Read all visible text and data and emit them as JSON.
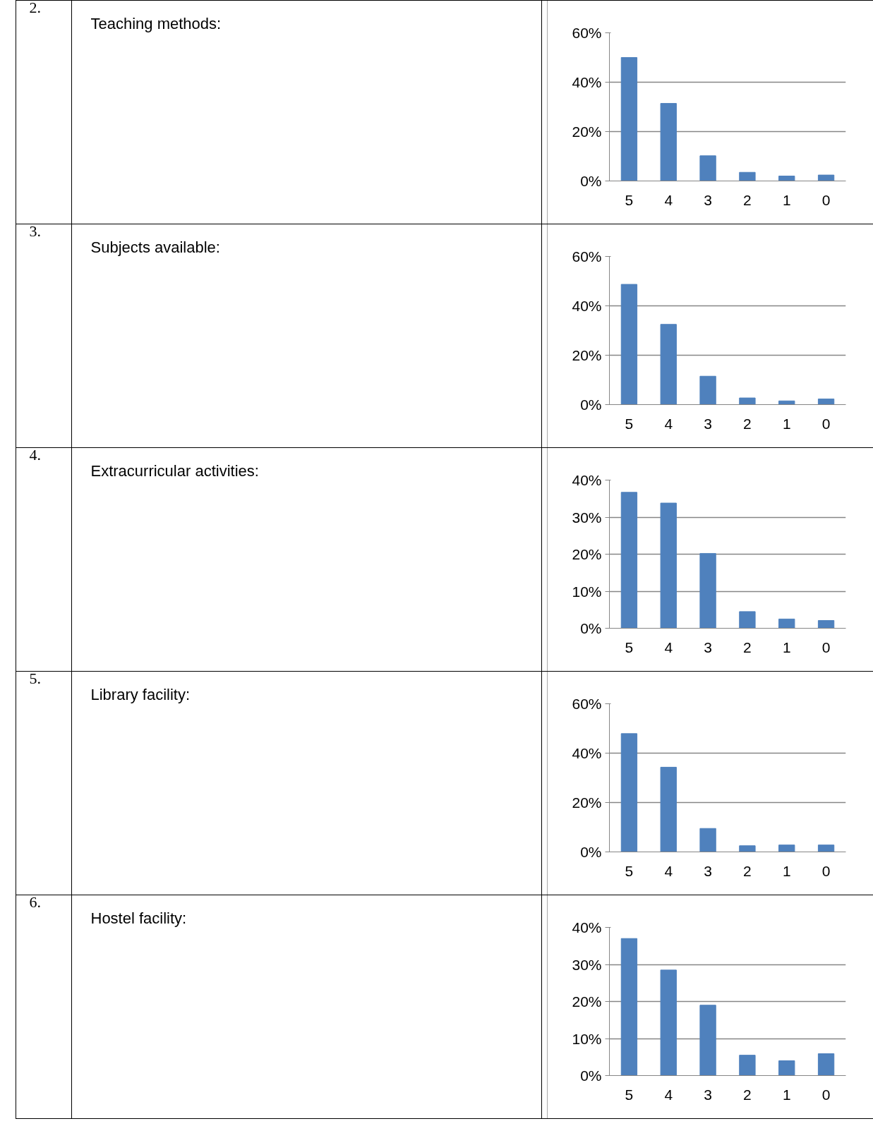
{
  "chart_data": [
    {
      "type": "bar",
      "annotations": [
        "2.",
        "Teaching methods:"
      ],
      "categories": [
        "5",
        "4",
        "3",
        "2",
        "1",
        "0"
      ],
      "values": [
        50,
        31.4,
        10.2,
        3.5,
        2.0,
        2.4
      ],
      "color": "#4f81bd",
      "ylim": [
        0,
        60
      ],
      "yticks": [
        {
          "value": 0,
          "label": "0%"
        },
        {
          "value": 20,
          "label": "20%"
        },
        {
          "value": 40,
          "label": "40%"
        },
        {
          "value": 60,
          "label": "60%"
        }
      ],
      "grid": "y"
    },
    {
      "type": "bar",
      "annotations": [
        "3.",
        "Subjects available:"
      ],
      "categories": [
        "5",
        "4",
        "3",
        "2",
        "1",
        "0"
      ],
      "values": [
        48.7,
        32.5,
        11.5,
        2.7,
        1.5,
        2.3
      ],
      "color": "#4f81bd",
      "ylim": [
        0,
        60
      ],
      "yticks": [
        {
          "value": 0,
          "label": "0%"
        },
        {
          "value": 20,
          "label": "20%"
        },
        {
          "value": 40,
          "label": "40%"
        },
        {
          "value": 60,
          "label": "60%"
        }
      ],
      "grid": "y"
    },
    {
      "type": "bar",
      "annotations": [
        "4.",
        "Extracurricular activities:"
      ],
      "categories": [
        "5",
        "4",
        "3",
        "2",
        "1",
        "0"
      ],
      "values": [
        36.7,
        33.8,
        20.2,
        4.5,
        2.5,
        2.1
      ],
      "color": "#4f81bd",
      "ylim": [
        0,
        40
      ],
      "yticks": [
        {
          "value": 0,
          "label": "0%"
        },
        {
          "value": 10,
          "label": "10%"
        },
        {
          "value": 20,
          "label": "20%"
        },
        {
          "value": 30,
          "label": "30%"
        },
        {
          "value": 40,
          "label": "40%"
        }
      ],
      "grid": "y"
    },
    {
      "type": "bar",
      "annotations": [
        "5.",
        "Library facility:"
      ],
      "categories": [
        "5",
        "4",
        "3",
        "2",
        "1",
        "0"
      ],
      "values": [
        47.9,
        34.3,
        9.5,
        2.5,
        2.8,
        2.8
      ],
      "color": "#4f81bd",
      "ylim": [
        0,
        60
      ],
      "yticks": [
        {
          "value": 0,
          "label": "0%"
        },
        {
          "value": 20,
          "label": "20%"
        },
        {
          "value": 40,
          "label": "40%"
        },
        {
          "value": 60,
          "label": "60%"
        }
      ],
      "grid": "y"
    },
    {
      "type": "bar",
      "annotations": [
        "6.",
        "Hostel facility:"
      ],
      "categories": [
        "5",
        "4",
        "3",
        "2",
        "1",
        "0"
      ],
      "values": [
        37.0,
        28.5,
        19.0,
        5.5,
        4.0,
        5.9
      ],
      "color": "#4f81bd",
      "ylim": [
        0,
        40
      ],
      "yticks": [
        {
          "value": 0,
          "label": "0%"
        },
        {
          "value": 10,
          "label": "10%"
        },
        {
          "value": 20,
          "label": "20%"
        },
        {
          "value": 30,
          "label": "30%"
        },
        {
          "value": 40,
          "label": "40%"
        }
      ],
      "grid": "y"
    }
  ]
}
